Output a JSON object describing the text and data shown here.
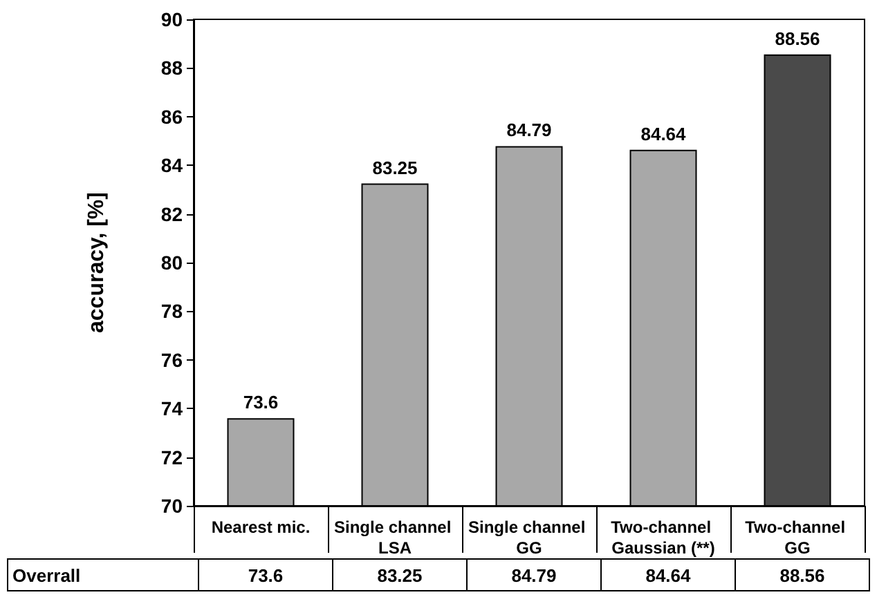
{
  "chart_data": {
    "type": "bar",
    "ylabel": "accuracy, [%]",
    "categories": [
      "Nearest mic.",
      "Single channel LSA",
      "Single channel GG",
      "Two-channel Gaussian (**)",
      "Two-channel GG"
    ],
    "values": [
      73.6,
      83.25,
      84.79,
      84.64,
      88.56
    ],
    "colors": [
      "#a8a8a8",
      "#a8a8a8",
      "#a8a8a8",
      "#a8a8a8",
      "#4a4a4a"
    ],
    "ylim": [
      70,
      90
    ],
    "yticks": [
      70,
      72,
      74,
      76,
      78,
      80,
      82,
      84,
      86,
      88,
      90
    ],
    "value_labels": [
      "73.6",
      "83.25",
      "84.79",
      "84.64",
      "88.56"
    ],
    "grid": false,
    "data_labels": true,
    "annotations": [
      "Overrall"
    ]
  }
}
